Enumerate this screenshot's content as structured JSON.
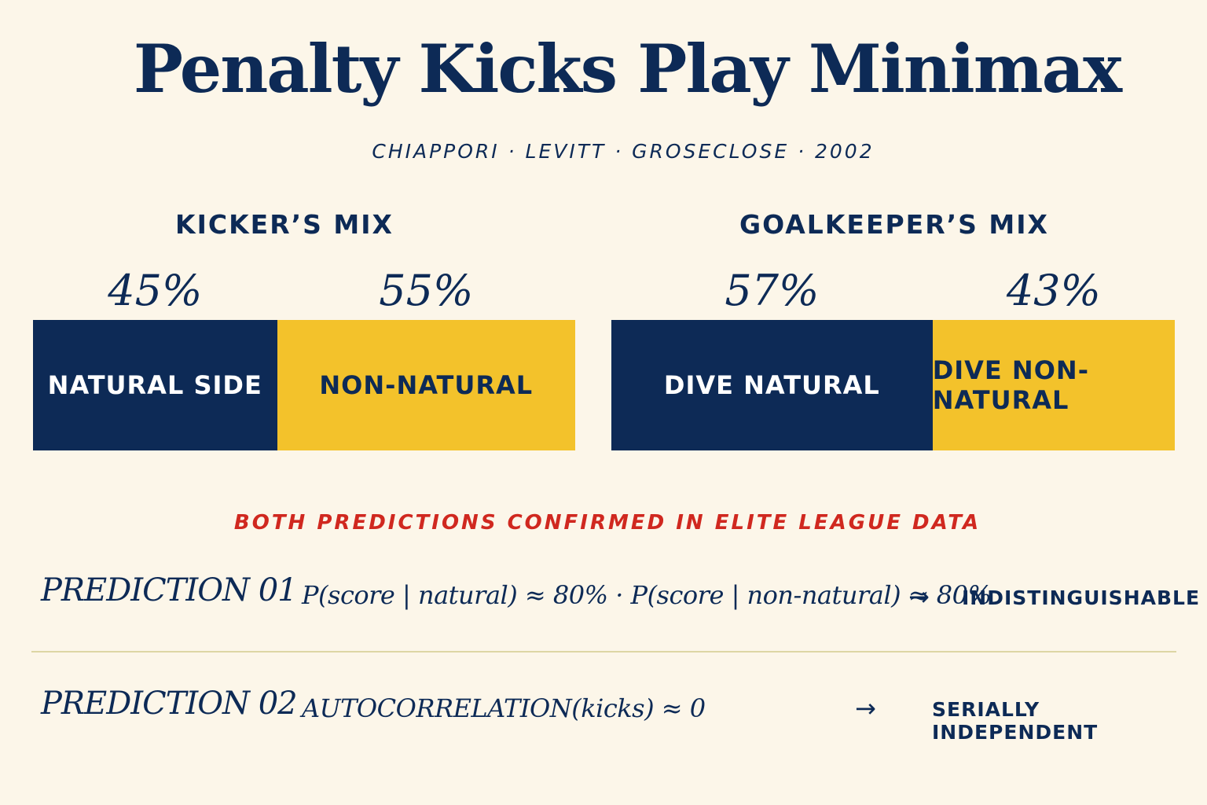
{
  "header": {
    "title": "Penalty Kicks Play Minimax",
    "subtitle": "CHIAPPORI · LEVITT · GROSECLOSE · 2002"
  },
  "chart_data": [
    {
      "type": "bar",
      "orientation": "horizontal-stacked",
      "title": "KICKER’S MIX",
      "categories": [
        "NATURAL SIDE",
        "NON-NATURAL"
      ],
      "values": [
        45,
        55
      ],
      "value_labels": [
        "45%",
        "55%"
      ],
      "colors": [
        "#0d2a56",
        "#f3c22b"
      ]
    },
    {
      "type": "bar",
      "orientation": "horizontal-stacked",
      "title": "GOALKEEPER’S MIX",
      "categories": [
        "DIVE NATURAL",
        "DIVE NON-NATURAL"
      ],
      "values": [
        57,
        43
      ],
      "value_labels": [
        "57%",
        "43%"
      ],
      "colors": [
        "#0d2a56",
        "#f3c22b"
      ]
    }
  ],
  "confirmation": "BOTH PREDICTIONS CONFIRMED IN ELITE LEAGUE DATA",
  "predictions": [
    {
      "label": "PREDICTION 01",
      "formula": "P(score | natural) ≈ 80% · P(score | non-natural) ≈ 80%",
      "arrow": "→",
      "verdict": "INDISTINGUISHABLE"
    },
    {
      "label": "PREDICTION 02",
      "formula": "AUTOCORRELATION(kicks) ≈ 0",
      "arrow": "→",
      "verdict": "SERIALLY INDEPENDENT"
    }
  ],
  "colors": {
    "background": "#fcf6e9",
    "navy": "#0d2a56",
    "gold": "#f3c22b",
    "accent_red": "#d0281f"
  }
}
